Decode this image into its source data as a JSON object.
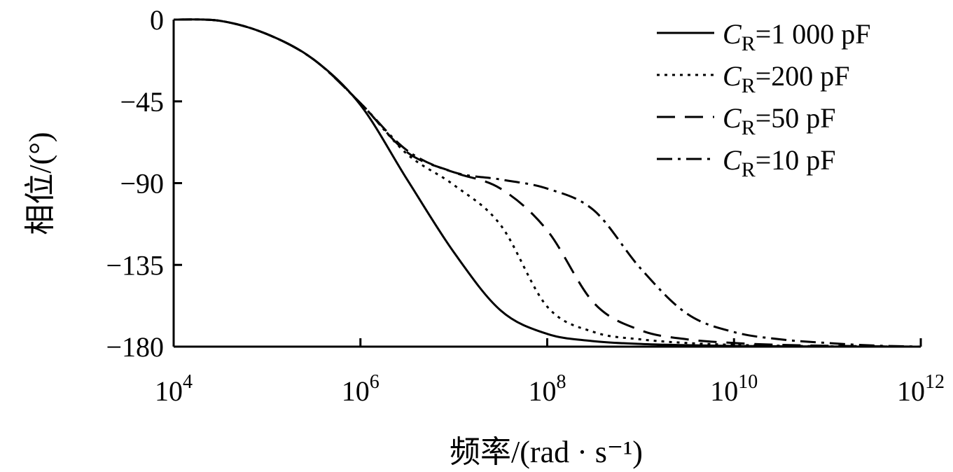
{
  "chart_data": {
    "type": "line",
    "xscale": "log",
    "xlim": [
      10000,
      1000000000000
    ],
    "ylim": [
      -180,
      0
    ],
    "xlabel": "频率/(rad · s⁻¹)",
    "ylabel": "相位/(°)",
    "x_ticks": [
      {
        "value": 10000,
        "base": "10",
        "exp": "4"
      },
      {
        "value": 1000000,
        "base": "10",
        "exp": "6"
      },
      {
        "value": 100000000,
        "base": "10",
        "exp": "8"
      },
      {
        "value": 10000000000,
        "base": "10",
        "exp": "10"
      },
      {
        "value": 1000000000000,
        "base": "10",
        "exp": "12"
      }
    ],
    "y_ticks": [
      {
        "value": 0,
        "label": "0"
      },
      {
        "value": -45,
        "label": "−45"
      },
      {
        "value": -90,
        "label": "−90"
      },
      {
        "value": -135,
        "label": "−135"
      },
      {
        "value": -180,
        "label": "−180"
      }
    ],
    "legend_position": "top-right",
    "grid": false,
    "x": [
      10000,
      31623,
      100000,
      316228,
      1000000,
      3162278,
      10000000,
      31622777,
      100000000,
      316227766,
      1000000000,
      3162277660,
      10000000000,
      31622776602,
      100000000000,
      316227766017,
      1000000000000
    ],
    "series": [
      {
        "name_main": "C",
        "name_sub": "R",
        "name_rest": "=1 000 pF",
        "dash": "",
        "values": [
          0,
          -0.7,
          -8,
          -22,
          -47,
          -88,
          -128,
          -160,
          -173,
          -177,
          -178.5,
          -179.2,
          -179.6,
          -179.8,
          -179.9,
          -180,
          -180
        ]
      },
      {
        "name_main": "C",
        "name_sub": "R",
        "name_rest": "=200 pF",
        "dash": "4 7",
        "values": [
          0,
          -0.7,
          -8,
          -22,
          -46,
          -74,
          -91,
          -113,
          -158,
          -172,
          -176,
          -178,
          -179,
          -179.5,
          -179.8,
          -179.9,
          -180
        ]
      },
      {
        "name_main": "C",
        "name_sub": "R",
        "name_rest": "=50 pF",
        "dash": "26 14",
        "values": [
          0,
          -0.7,
          -8,
          -22,
          -46,
          -73,
          -84,
          -93,
          -116,
          -156,
          -171,
          -176,
          -178,
          -179,
          -179.5,
          -179.8,
          -180
        ]
      },
      {
        "name_main": "C",
        "name_sub": "R",
        "name_rest": "=10 pF",
        "dash": "22 8 4 8",
        "values": [
          0,
          -0.7,
          -8,
          -22,
          -46,
          -72,
          -84,
          -88,
          -93,
          -105,
          -137,
          -162,
          -172,
          -176,
          -178,
          -179.4,
          -180
        ]
      }
    ]
  }
}
